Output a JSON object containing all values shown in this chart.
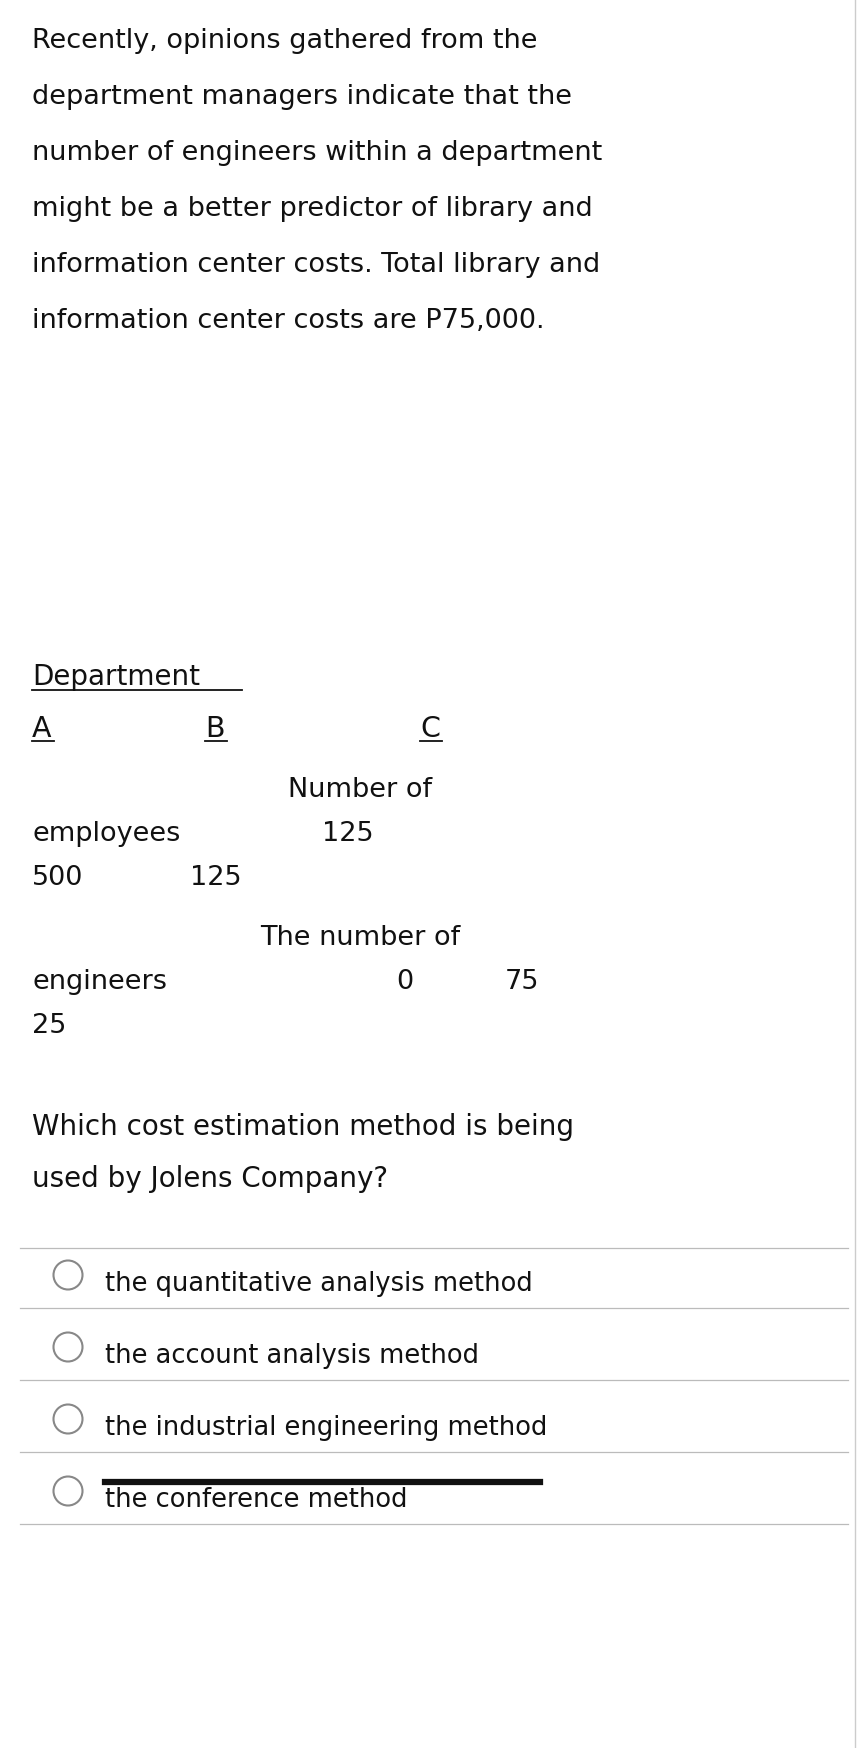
{
  "bg_color": "#ffffff",
  "text_color": "#111111",
  "para_lines": [
    "Recently, opinions gathered from the",
    "department managers indicate that the",
    "number of engineers within a department",
    "might be a better predictor of library and",
    "information center costs. Total library and",
    "information center costs are P75,000."
  ],
  "dept_header": "Department",
  "col_A": "A",
  "col_B": "B",
  "col_C": "C",
  "numof_label": "Number of",
  "employees_label": "employees",
  "emp_A": "500",
  "emp_B": "125",
  "emp_C": "125",
  "thenumof_label": "The number of",
  "engineers_label": "engineers",
  "eng_A": "25",
  "eng_B": "0",
  "eng_C": "75",
  "question_lines": [
    "Which cost estimation method is being",
    "used by Jolens Company?"
  ],
  "options": [
    "the quantitative analysis method",
    "the account analysis method",
    "the industrial engineering method",
    "the conference method"
  ],
  "strikethrough_option": 3
}
